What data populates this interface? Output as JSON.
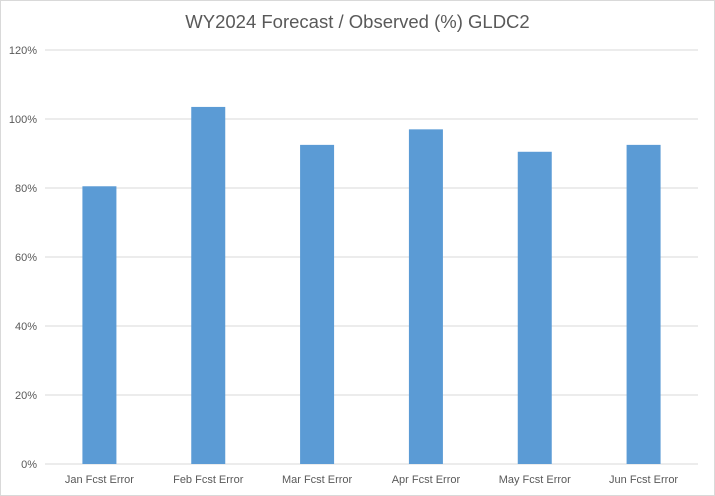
{
  "chart_data": {
    "type": "bar",
    "title": "WY2024 Forecast / Observed (%) GLDC2",
    "xlabel": "",
    "ylabel": "",
    "categories": [
      "Jan Fcst Error",
      "Feb Fcst Error",
      "Mar Fcst Error",
      "Apr Fcst Error",
      "May Fcst Error",
      "Jun Fcst Error"
    ],
    "values": [
      80.5,
      103.5,
      92.5,
      97.0,
      90.5,
      92.5
    ],
    "ylim": [
      0,
      120
    ],
    "yticks": [
      0,
      20,
      40,
      60,
      80,
      100,
      120
    ],
    "ytick_labels": [
      "0%",
      "20%",
      "40%",
      "60%",
      "80%",
      "100%",
      "120%"
    ],
    "grid": true,
    "legend": "none",
    "bar_color": "#5b9bd5"
  }
}
